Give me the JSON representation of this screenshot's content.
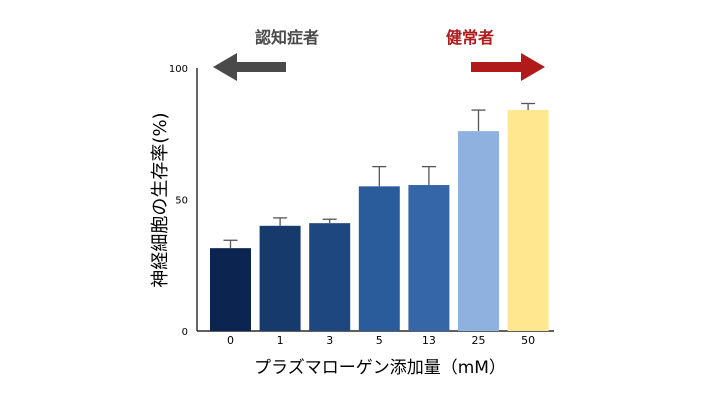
{
  "chart_data": {
    "type": "bar",
    "xlabel": "プラズマローゲン添加量（mM）",
    "ylabel": "神経細胞の生存率(%)",
    "ylim": [
      0,
      100
    ],
    "yticks": [
      0,
      50,
      100
    ],
    "grid": false,
    "categories": [
      "0",
      "1",
      "3",
      "5",
      "13",
      "25",
      "50"
    ],
    "values": [
      31.5,
      40,
      41,
      55,
      55.5,
      76,
      84
    ],
    "errors": [
      3,
      3,
      1.5,
      7.5,
      7,
      8,
      2.5
    ],
    "bar_colors": [
      "#0b2550",
      "#173a6d",
      "#1f477f",
      "#2a5c9c",
      "#3566a8",
      "#8eb1e0",
      "#ffe790"
    ],
    "annotations": {
      "left_arrow": {
        "label": "認知症者",
        "direction": "left",
        "color": "#4a4a4a"
      },
      "right_arrow": {
        "label": "健常者",
        "direction": "right",
        "color": "#b11a1a"
      }
    }
  }
}
